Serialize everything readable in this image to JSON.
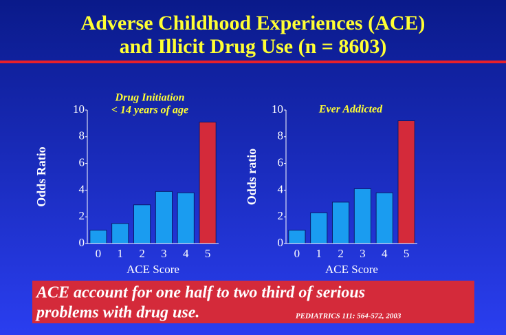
{
  "title": [
    "Adverse Childhood Experiences (ACE)",
    "and Illicit Drug Use (n = 8603)"
  ],
  "banner": [
    "ACE account for one half to two third of serious",
    "problems with drug use."
  ],
  "citation": "PEDIATRICS 111: 564-572, 2003",
  "chart_data": [
    {
      "type": "bar",
      "title": [
        "Drug Initiation",
        "< 14 years of age"
      ],
      "ylabel": "Odds Ratio",
      "xlabel": "ACE Score",
      "categories": [
        "0",
        "1",
        "2",
        "3",
        "4",
        "5"
      ],
      "values": [
        1.0,
        1.5,
        2.9,
        3.9,
        3.8,
        9.1
      ],
      "colors": [
        "#1a9cf0",
        "#1a9cf0",
        "#1a9cf0",
        "#1a9cf0",
        "#1a9cf0",
        "#d42a3a"
      ],
      "ylim": [
        0,
        10
      ],
      "yticks": [
        0,
        2,
        4,
        6,
        8,
        10
      ],
      "grid": false
    },
    {
      "type": "bar",
      "title": [
        "Ever Addicted"
      ],
      "ylabel": "Odds ratio",
      "xlabel": "ACE Score",
      "categories": [
        "0",
        "1",
        "2",
        "3",
        "4",
        "5"
      ],
      "values": [
        1.0,
        2.3,
        3.1,
        4.1,
        3.8,
        9.2
      ],
      "colors": [
        "#1a9cf0",
        "#1a9cf0",
        "#1a9cf0",
        "#1a9cf0",
        "#1a9cf0",
        "#d42a3a"
      ],
      "ylim": [
        0,
        10
      ],
      "yticks": [
        0,
        2,
        4,
        6,
        8,
        10
      ],
      "grid": false
    }
  ]
}
